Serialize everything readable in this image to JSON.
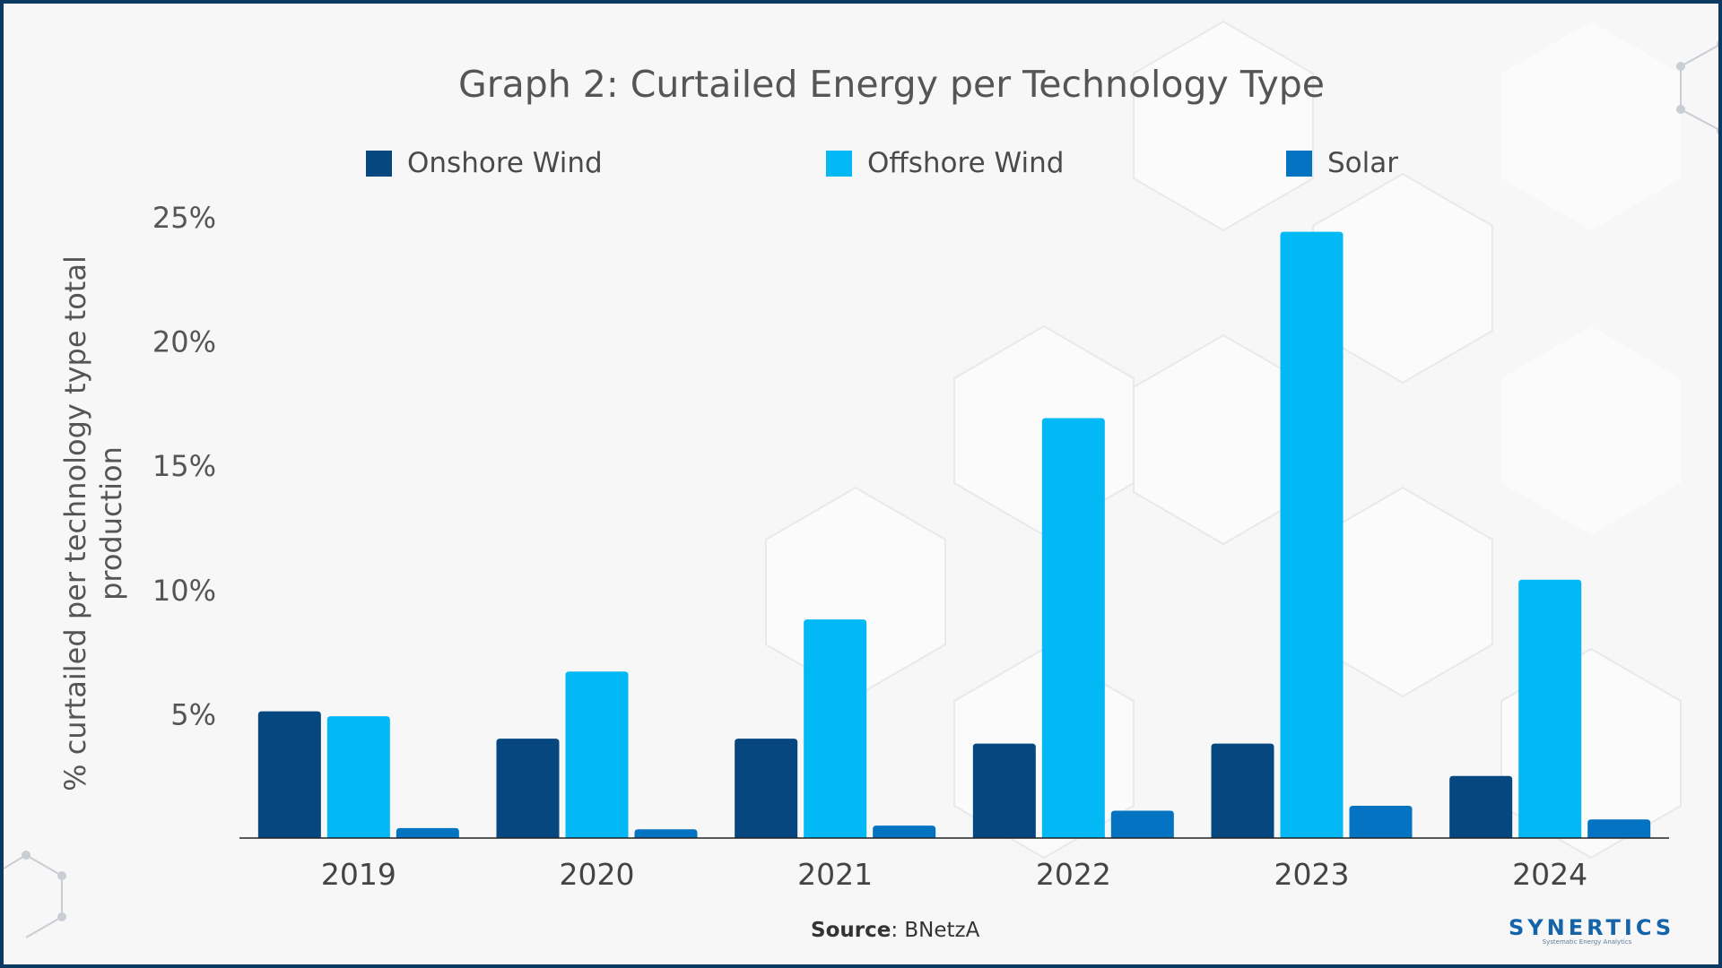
{
  "chart_data": {
    "type": "bar",
    "title": "Graph 2:  Curtailed Energy per Technology Type",
    "ylabel_lines": [
      "% curtailed per technology type total",
      "production"
    ],
    "categories": [
      "2019",
      "2020",
      "2021",
      "2022",
      "2023",
      "2024"
    ],
    "series": [
      {
        "name": "Onshore Wind",
        "color": "#05477e",
        "values": [
          5.1,
          4.0,
          4.0,
          3.8,
          3.8,
          2.5
        ]
      },
      {
        "name": "Offshore Wind",
        "color": "#02b9f6",
        "values": [
          4.9,
          6.7,
          8.8,
          16.9,
          24.4,
          10.4
        ]
      },
      {
        "name": "Solar",
        "color": "#0473c2",
        "values": [
          0.4,
          0.35,
          0.5,
          1.1,
          1.3,
          0.75
        ]
      }
    ],
    "ylim": [
      0,
      25
    ],
    "yticks": [
      5,
      10,
      15,
      20,
      25
    ],
    "ytick_labels": [
      "5%",
      "10%",
      "15%",
      "20%",
      "25%"
    ],
    "grid": false,
    "legend_position": "top"
  },
  "source": {
    "label": "Source",
    "value": ": BNetzA"
  },
  "logo": {
    "name": "SYNERTICS",
    "tagline": "Systematic Energy Analytics"
  }
}
